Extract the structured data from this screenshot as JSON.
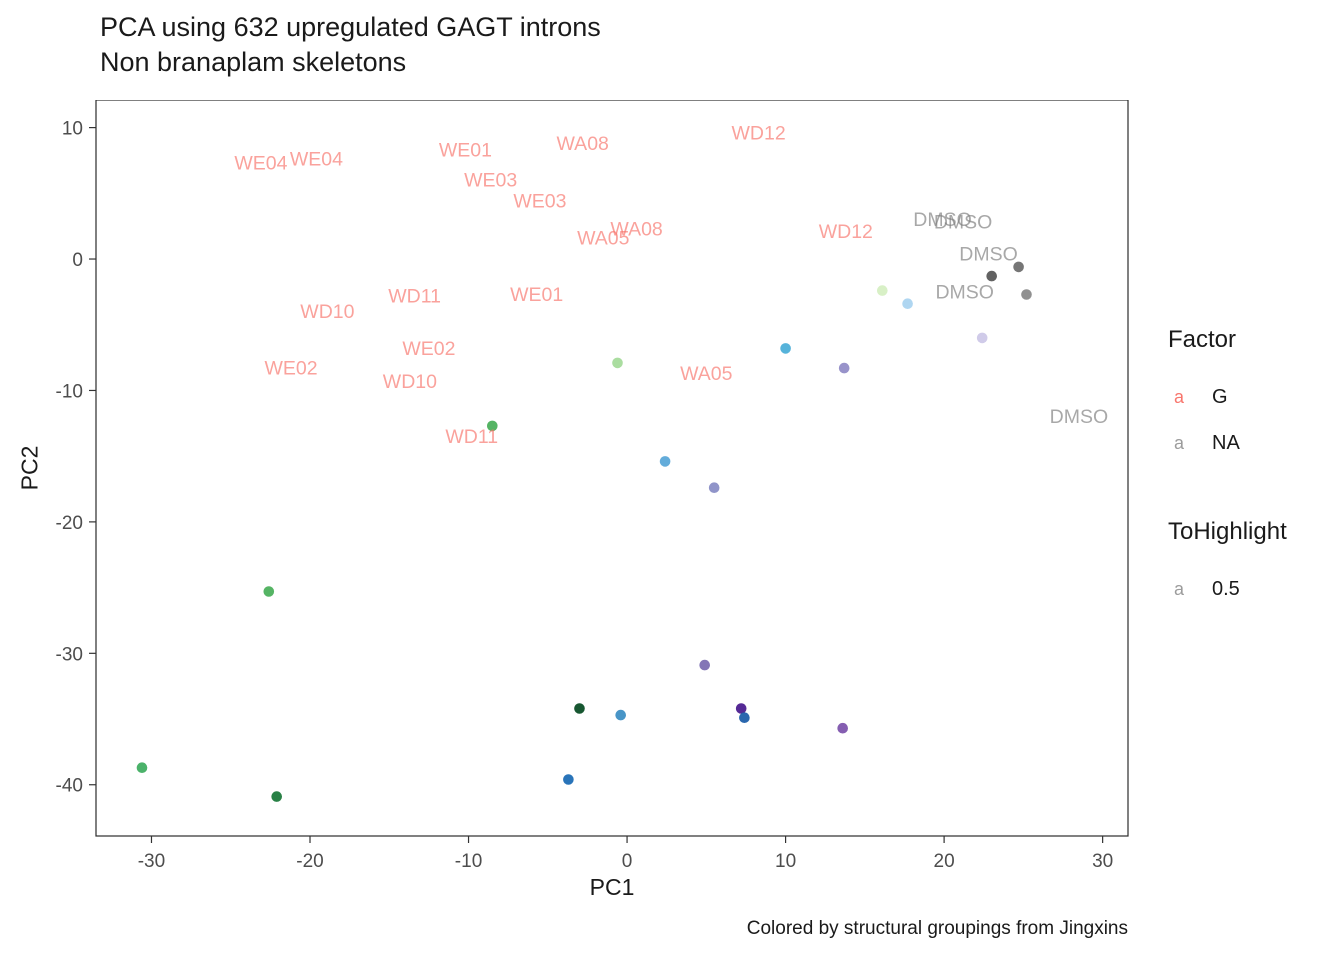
{
  "title": "PCA using 632 upregulated GAGT introns",
  "subtitle": "Non branaplam skeletons",
  "caption": "Colored by structural groupings from Jingxins",
  "axes": {
    "x_label": "PC1",
    "y_label": "PC2"
  },
  "legend": {
    "factor_title": "Factor",
    "factor_items": [
      {
        "glyph": "a",
        "label": "G",
        "color": "#F8766D"
      },
      {
        "glyph": "a",
        "label": "NA",
        "color": "#9C9C9C"
      }
    ],
    "tohighlight_title": "ToHighlight",
    "tohighlight_items": [
      {
        "glyph": "a",
        "label": "0.5",
        "color": "#9C9C9C"
      }
    ]
  },
  "chart_data": {
    "type": "scatter",
    "title": "PCA using 632 upregulated GAGT introns",
    "subtitle": "Non branaplam skeletons",
    "xlabel": "PC1",
    "ylabel": "PC2",
    "xlim": [
      -33.5,
      31.6
    ],
    "ylim": [
      -43.9,
      12.1
    ],
    "x_ticks": [
      -30,
      -20,
      -10,
      0,
      10,
      20,
      30
    ],
    "y_ticks": [
      10,
      0,
      -10,
      -20,
      -30,
      -40
    ],
    "grid": false,
    "legend_position": "right",
    "points": [
      {
        "x": -0.6,
        "y": -7.9,
        "color": "#A5DB9B"
      },
      {
        "x": -8.5,
        "y": -12.7,
        "color": "#4CB05C"
      },
      {
        "x": -22.6,
        "y": -25.3,
        "color": "#4CB05C"
      },
      {
        "x": -30.6,
        "y": -38.7,
        "color": "#41AE62"
      },
      {
        "x": -22.1,
        "y": -40.9,
        "color": "#1E7A3C"
      },
      {
        "x": -3.0,
        "y": -34.2,
        "color": "#0B4E26"
      },
      {
        "x": -3.7,
        "y": -39.6,
        "color": "#1D6DB5"
      },
      {
        "x": -0.4,
        "y": -34.7,
        "color": "#3E8FC4"
      },
      {
        "x": 2.4,
        "y": -15.4,
        "color": "#5BA8D8"
      },
      {
        "x": 10.0,
        "y": -6.8,
        "color": "#4DAFD8"
      },
      {
        "x": 17.7,
        "y": -3.4,
        "color": "#ABD4F0"
      },
      {
        "x": 16.1,
        "y": -2.4,
        "color": "#D6EFC3"
      },
      {
        "x": 5.5,
        "y": -17.4,
        "color": "#8A8EC6"
      },
      {
        "x": 13.7,
        "y": -8.3,
        "color": "#928DC7"
      },
      {
        "x": 22.4,
        "y": -6.0,
        "color": "#CDC8E8"
      },
      {
        "x": 4.9,
        "y": -30.9,
        "color": "#7C6FB2"
      },
      {
        "x": 7.2,
        "y": -34.2,
        "color": "#4C1D8F"
      },
      {
        "x": 7.4,
        "y": -34.9,
        "color": "#1F5FAA"
      },
      {
        "x": 13.6,
        "y": -35.7,
        "color": "#7E55AD"
      },
      {
        "x": 23.0,
        "y": -1.3,
        "color": "#5A5A5A"
      },
      {
        "x": 24.7,
        "y": -0.6,
        "color": "#6F6F6F"
      },
      {
        "x": 25.2,
        "y": -2.7,
        "color": "#8A8A8A"
      }
    ],
    "text_labels": [
      {
        "text": "WE04",
        "x": -23.1,
        "y": 7.3,
        "color": "#F8766D"
      },
      {
        "text": "WE04",
        "x": -19.6,
        "y": 7.6,
        "color": "#F8766D"
      },
      {
        "text": "WE01",
        "x": -10.2,
        "y": 8.3,
        "color": "#F8766D"
      },
      {
        "text": "WA08",
        "x": -2.8,
        "y": 8.8,
        "color": "#F8766D"
      },
      {
        "text": "WD12",
        "x": 8.3,
        "y": 9.6,
        "color": "#F8766D"
      },
      {
        "text": "WE03",
        "x": -8.6,
        "y": 6.0,
        "color": "#F8766D"
      },
      {
        "text": "WE03",
        "x": -5.5,
        "y": 4.4,
        "color": "#F8766D"
      },
      {
        "text": "WA08",
        "x": 0.6,
        "y": 2.3,
        "color": "#F8766D"
      },
      {
        "text": "WA05",
        "x": -1.5,
        "y": 1.6,
        "color": "#F8766D"
      },
      {
        "text": "WD12",
        "x": 13.8,
        "y": 2.1,
        "color": "#F8766D"
      },
      {
        "text": "WD11",
        "x": -13.4,
        "y": -2.8,
        "color": "#F8766D"
      },
      {
        "text": "WE01",
        "x": -5.7,
        "y": -2.7,
        "color": "#F8766D"
      },
      {
        "text": "WD10",
        "x": -18.9,
        "y": -4.0,
        "color": "#F8766D"
      },
      {
        "text": "WE02",
        "x": -12.5,
        "y": -6.8,
        "color": "#F8766D"
      },
      {
        "text": "WE02",
        "x": -21.2,
        "y": -8.3,
        "color": "#F8766D"
      },
      {
        "text": "WD10",
        "x": -13.7,
        "y": -9.3,
        "color": "#F8766D"
      },
      {
        "text": "WA05",
        "x": 5.0,
        "y": -8.7,
        "color": "#F8766D"
      },
      {
        "text": "WD11",
        "x": -9.8,
        "y": -13.5,
        "color": "#F8766D"
      },
      {
        "text": "DMSO",
        "x": 19.9,
        "y": 3.0,
        "color": "#7F7F7F"
      },
      {
        "text": "DMSO",
        "x": 21.2,
        "y": 2.8,
        "color": "#7F7F7F"
      },
      {
        "text": "DMSO",
        "x": 22.8,
        "y": 0.4,
        "color": "#7F7F7F"
      },
      {
        "text": "DMSO",
        "x": 21.3,
        "y": -2.5,
        "color": "#7F7F7F"
      },
      {
        "text": "DMSO",
        "x": 28.5,
        "y": -12.0,
        "color": "#7F7F7F"
      }
    ]
  }
}
